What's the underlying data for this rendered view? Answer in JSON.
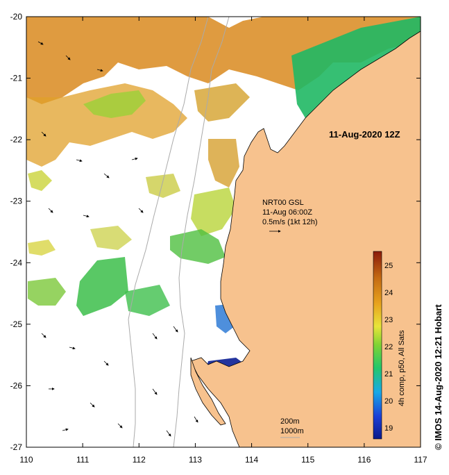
{
  "title_date": "11-Aug-2020 12Z",
  "current_info": {
    "line1": "NRT00 GSL",
    "line2": "11-Aug 06:00Z",
    "line3": "0.5m/s (1kt 12h)"
  },
  "bathy": {
    "contour1": "200m",
    "contour2": "1000m"
  },
  "colorbar": {
    "title": "4h comp, p50, All Sats",
    "ticks": [
      "19",
      "20",
      "21",
      "22",
      "23",
      "24",
      "25"
    ],
    "colors": [
      "#0a1a8a",
      "#1c3fd6",
      "#19a9e6",
      "#22c76a",
      "#7fd334",
      "#e8e43a",
      "#e8a31e",
      "#c46a12",
      "#8a1a0a"
    ]
  },
  "credit": "© IMOS 14-Aug-2020 12:21 Hobart",
  "axes": {
    "x_ticks": [
      "110",
      "111",
      "112",
      "113",
      "114",
      "115",
      "116",
      "117"
    ],
    "y_ticks": [
      "-20",
      "-21",
      "-22",
      "-23",
      "-24",
      "-25",
      "-26",
      "-27"
    ]
  },
  "colors": {
    "land": "#f7c28e",
    "ocean_blank": "#ffffff",
    "frame": "#000000"
  }
}
